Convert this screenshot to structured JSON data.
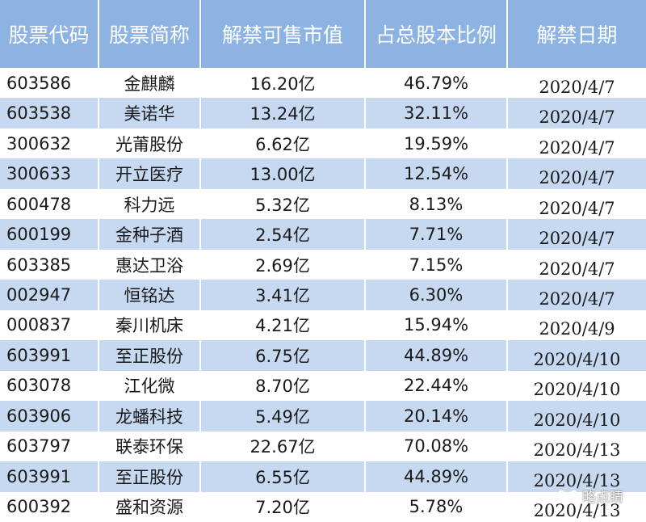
{
  "headers": [
    "股票代码",
    "股票简称",
    "解禁可售市值",
    "占总股本比例",
    "解禁日期"
  ],
  "rows": [
    {
      "code": "603586",
      "name": "金麒麟",
      "value": "16.20亿",
      "ratio": "46.79%",
      "date": "2020/4/7"
    },
    {
      "code": "603538",
      "name": "美诺华",
      "value": "13.24亿",
      "ratio": "32.11%",
      "date": "2020/4/7"
    },
    {
      "code": "300632",
      "name": "光莆股份",
      "value": "6.62亿",
      "ratio": "19.59%",
      "date": "2020/4/7"
    },
    {
      "code": "300633",
      "name": "开立医疗",
      "value": "13.00亿",
      "ratio": "12.54%",
      "date": "2020/4/7"
    },
    {
      "code": "600478",
      "name": "科力远",
      "value": "5.32亿",
      "ratio": "8.13%",
      "date": "2020/4/7"
    },
    {
      "code": "600199",
      "name": "金种子酒",
      "value": "2.54亿",
      "ratio": "7.71%",
      "date": "2020/4/7"
    },
    {
      "code": "603385",
      "name": "惠达卫浴",
      "value": "2.69亿",
      "ratio": "7.15%",
      "date": "2020/4/7"
    },
    {
      "code": "002947",
      "name": "恒铭达",
      "value": "3.41亿",
      "ratio": "6.30%",
      "date": "2020/4/7"
    },
    {
      "code": "000837",
      "name": "秦川机床",
      "value": "4.21亿",
      "ratio": "15.94%",
      "date": "2020/4/9"
    },
    {
      "code": "603991",
      "name": "至正股份",
      "value": "6.75亿",
      "ratio": "44.89%",
      "date": "2020/4/10"
    },
    {
      "code": "603078",
      "name": "江化微",
      "value": "8.70亿",
      "ratio": "22.44%",
      "date": "2020/4/10"
    },
    {
      "code": "603906",
      "name": "龙蟠科技",
      "value": "5.49亿",
      "ratio": "20.14%",
      "date": "2020/4/10"
    },
    {
      "code": "603797",
      "name": "联泰环保",
      "value": "22.67亿",
      "ratio": "70.08%",
      "date": "2020/4/13"
    },
    {
      "code": "603991",
      "name": "至正股份",
      "value": "6.55亿",
      "ratio": "44.89%",
      "date": "2020/4/13"
    },
    {
      "code": "600392",
      "name": "盛和资源",
      "value": "7.20亿",
      "ratio": "5.78%",
      "date": "2020/4/13"
    }
  ],
  "watermark": {
    "text": "略点睛",
    "icon": "wechat-channel-icon"
  },
  "colors": {
    "header_bg": "#8db3e2",
    "stripe": "#c6d9f1"
  }
}
